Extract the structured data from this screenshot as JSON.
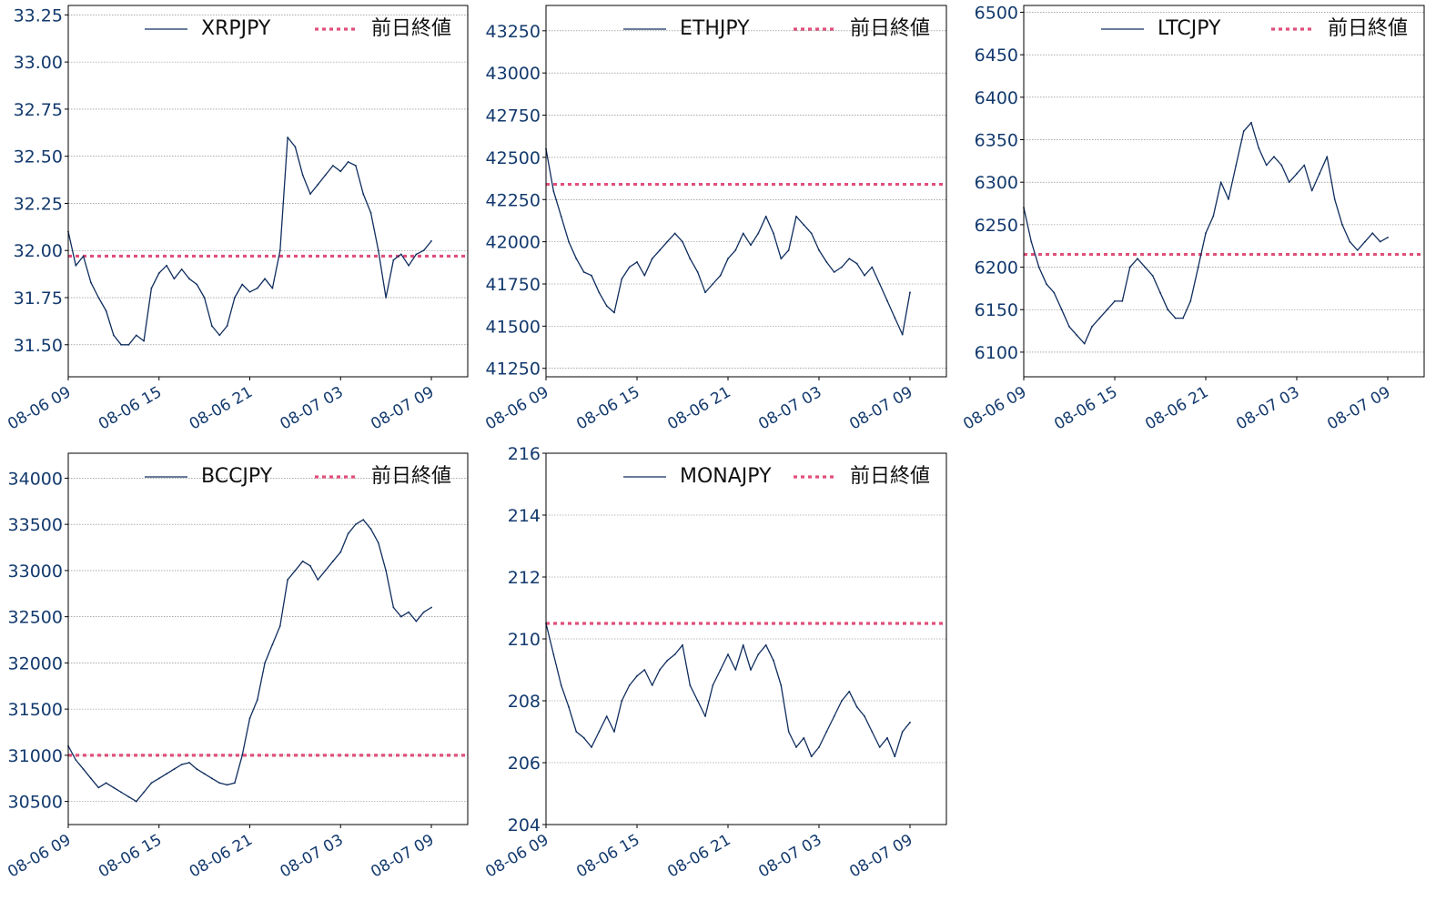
{
  "colors": {
    "series": "#0f2d5e",
    "reference": "#e0507a",
    "ticks": "#133a6e",
    "legend_text": "#111111",
    "grid": "#777777"
  },
  "x_tick_labels": [
    "08-06 09",
    "08-06 15",
    "08-06 21",
    "08-07 03",
    "08-07 09"
  ],
  "chart_data": [
    {
      "type": "line",
      "series": [
        {
          "name": "XRPJPY",
          "x": [
            9.0,
            9.5,
            10.0,
            10.5,
            11.0,
            11.5,
            12.0,
            12.5,
            13.0,
            13.5,
            14.0,
            14.5,
            15.0,
            15.5,
            16.0,
            16.5,
            17.0,
            17.5,
            18.0,
            18.5,
            19.0,
            19.5,
            20.0,
            20.5,
            21.0,
            21.5,
            22.0,
            22.5,
            23.0,
            23.5,
            24.0,
            24.5,
            25.0,
            25.5,
            26.0,
            26.5,
            27.0,
            27.5,
            28.0,
            28.5,
            29.0,
            29.5,
            30.0,
            30.5,
            31.0,
            31.5,
            32.0,
            32.5,
            33.0
          ],
          "values": [
            32.1,
            31.92,
            31.97,
            31.83,
            31.75,
            31.68,
            31.55,
            31.5,
            31.5,
            31.55,
            31.52,
            31.8,
            31.88,
            31.92,
            31.85,
            31.9,
            31.85,
            31.82,
            31.75,
            31.6,
            31.55,
            31.6,
            31.75,
            31.82,
            31.78,
            31.8,
            31.85,
            31.8,
            32.0,
            32.6,
            32.55,
            32.4,
            32.3,
            32.35,
            32.4,
            32.45,
            32.42,
            32.47,
            32.45,
            32.3,
            32.2,
            32.0,
            31.75,
            31.95,
            31.98,
            31.92,
            31.98,
            32.0,
            32.05
          ]
        },
        {
          "name": "前日終値",
          "reference": 31.97
        }
      ],
      "xlim": [
        9.0,
        33.0
      ],
      "ylim": [
        31.33,
        33.3
      ],
      "y_ticks": [
        31.5,
        31.75,
        32.0,
        32.25,
        32.5,
        32.75,
        33.0,
        33.25
      ],
      "y_tick_labels": [
        "31.50",
        "31.75",
        "32.00",
        "32.25",
        "32.50",
        "32.75",
        "33.00",
        "33.25"
      ],
      "grid": true,
      "legend": "top-right",
      "title": "",
      "xlabel": "",
      "ylabel": ""
    },
    {
      "type": "line",
      "series": [
        {
          "name": "ETHJPY",
          "x": [
            9.0,
            9.5,
            10.0,
            10.5,
            11.0,
            11.5,
            12.0,
            12.5,
            13.0,
            13.5,
            14.0,
            14.5,
            15.0,
            15.5,
            16.0,
            16.5,
            17.0,
            17.5,
            18.0,
            18.5,
            19.0,
            19.5,
            20.0,
            20.5,
            21.0,
            21.5,
            22.0,
            22.5,
            23.0,
            23.5,
            24.0,
            24.5,
            25.0,
            25.5,
            26.0,
            26.5,
            27.0,
            27.5,
            28.0,
            28.5,
            29.0,
            29.5,
            30.0,
            30.5,
            31.0,
            31.5,
            32.0,
            32.5,
            33.0
          ],
          "values": [
            42550,
            42300,
            42150,
            42000,
            41900,
            41820,
            41800,
            41700,
            41620,
            41580,
            41780,
            41850,
            41880,
            41800,
            41900,
            41950,
            42000,
            42050,
            42000,
            41900,
            41820,
            41700,
            41750,
            41800,
            41900,
            41950,
            42050,
            41980,
            42050,
            42150,
            42050,
            41900,
            41950,
            42150,
            42100,
            42050,
            41950,
            41880,
            41820,
            41850,
            41900,
            41870,
            41800,
            41850,
            41750,
            41650,
            41550,
            41450,
            41700
          ]
        },
        {
          "name": "前日終値",
          "reference": 42340
        }
      ],
      "xlim": [
        9.0,
        33.0
      ],
      "ylim": [
        41200,
        43400
      ],
      "y_ticks": [
        41250,
        41500,
        41750,
        42000,
        42250,
        42500,
        42750,
        43000,
        43250
      ],
      "y_tick_labels": [
        "41250",
        "41500",
        "41750",
        "42000",
        "42250",
        "42500",
        "42750",
        "43000",
        "43250"
      ],
      "grid": true,
      "legend": "top-right",
      "title": "",
      "xlabel": "",
      "ylabel": ""
    },
    {
      "type": "line",
      "series": [
        {
          "name": "LTCJPY",
          "x": [
            9.0,
            9.5,
            10.0,
            10.5,
            11.0,
            11.5,
            12.0,
            12.5,
            13.0,
            13.5,
            14.0,
            14.5,
            15.0,
            15.5,
            16.0,
            16.5,
            17.0,
            17.5,
            18.0,
            18.5,
            19.0,
            19.5,
            20.0,
            20.5,
            21.0,
            21.5,
            22.0,
            22.5,
            23.0,
            23.5,
            24.0,
            24.5,
            25.0,
            25.5,
            26.0,
            26.5,
            27.0,
            27.5,
            28.0,
            28.5,
            29.0,
            29.5,
            30.0,
            30.5,
            31.0,
            31.5,
            32.0,
            32.5,
            33.0
          ],
          "values": [
            6270,
            6230,
            6200,
            6180,
            6170,
            6150,
            6130,
            6120,
            6110,
            6130,
            6140,
            6150,
            6160,
            6160,
            6200,
            6210,
            6200,
            6190,
            6170,
            6150,
            6140,
            6140,
            6160,
            6200,
            6240,
            6260,
            6300,
            6280,
            6320,
            6360,
            6370,
            6340,
            6320,
            6330,
            6320,
            6300,
            6310,
            6320,
            6290,
            6310,
            6330,
            6280,
            6250,
            6230,
            6220,
            6230,
            6240,
            6230,
            6235
          ]
        },
        {
          "name": "前日終値",
          "reference": 6215
        }
      ],
      "xlim": [
        9.0,
        33.0
      ],
      "ylim": [
        6071,
        6508
      ],
      "y_ticks": [
        6100,
        6150,
        6200,
        6250,
        6300,
        6350,
        6400,
        6450,
        6500
      ],
      "y_tick_labels": [
        "6100",
        "6150",
        "6200",
        "6250",
        "6300",
        "6350",
        "6400",
        "6450",
        "6500"
      ],
      "grid": true,
      "legend": "top-right",
      "title": "",
      "xlabel": "",
      "ylabel": ""
    },
    {
      "type": "line",
      "series": [
        {
          "name": "BCCJPY",
          "x": [
            9.0,
            9.5,
            10.0,
            10.5,
            11.0,
            11.5,
            12.0,
            12.5,
            13.0,
            13.5,
            14.0,
            14.5,
            15.0,
            15.5,
            16.0,
            16.5,
            17.0,
            17.5,
            18.0,
            18.5,
            19.0,
            19.5,
            20.0,
            20.5,
            21.0,
            21.5,
            22.0,
            22.5,
            23.0,
            23.5,
            24.0,
            24.5,
            25.0,
            25.5,
            26.0,
            26.5,
            27.0,
            27.5,
            28.0,
            28.5,
            29.0,
            29.5,
            30.0,
            30.5,
            31.0,
            31.5,
            32.0,
            32.5,
            33.0
          ],
          "values": [
            31100,
            30950,
            30850,
            30750,
            30650,
            30700,
            30650,
            30600,
            30550,
            30500,
            30600,
            30700,
            30750,
            30800,
            30850,
            30900,
            30920,
            30850,
            30800,
            30750,
            30700,
            30680,
            30700,
            31000,
            31400,
            31600,
            32000,
            32200,
            32400,
            32900,
            33000,
            33100,
            33050,
            32900,
            33000,
            33100,
            33200,
            33400,
            33500,
            33550,
            33450,
            33300,
            33000,
            32600,
            32500,
            32550,
            32450,
            32550,
            32600
          ]
        },
        {
          "name": "前日終値",
          "reference": 31000
        }
      ],
      "xlim": [
        9.0,
        33.0
      ],
      "ylim": [
        30250,
        34270
      ],
      "y_ticks": [
        30500,
        31000,
        31500,
        32000,
        32500,
        33000,
        33500,
        34000
      ],
      "y_tick_labels": [
        "30500",
        "31000",
        "31500",
        "32000",
        "32500",
        "33000",
        "33500",
        "34000"
      ],
      "grid": true,
      "legend": "top-right",
      "title": "",
      "xlabel": "",
      "ylabel": ""
    },
    {
      "type": "line",
      "series": [
        {
          "name": "MONAJPY",
          "x": [
            9.0,
            9.5,
            10.0,
            10.5,
            11.0,
            11.5,
            12.0,
            12.5,
            13.0,
            13.5,
            14.0,
            14.5,
            15.0,
            15.5,
            16.0,
            16.5,
            17.0,
            17.5,
            18.0,
            18.5,
            19.0,
            19.5,
            20.0,
            20.5,
            21.0,
            21.5,
            22.0,
            22.5,
            23.0,
            23.5,
            24.0,
            24.5,
            25.0,
            25.5,
            26.0,
            26.5,
            27.0,
            27.5,
            28.0,
            28.5,
            29.0,
            29.5,
            30.0,
            30.5,
            31.0,
            31.5,
            32.0,
            32.5,
            33.0
          ],
          "values": [
            210.5,
            209.5,
            208.5,
            207.8,
            207.0,
            206.8,
            206.5,
            207.0,
            207.5,
            207.0,
            208.0,
            208.5,
            208.8,
            209.0,
            208.5,
            209.0,
            209.3,
            209.5,
            209.8,
            208.5,
            208.0,
            207.5,
            208.5,
            209.0,
            209.5,
            209.0,
            209.8,
            209.0,
            209.5,
            209.8,
            209.3,
            208.5,
            207.0,
            206.5,
            206.8,
            206.2,
            206.5,
            207.0,
            207.5,
            208.0,
            208.3,
            207.8,
            207.5,
            207.0,
            206.5,
            206.8,
            206.2,
            207.0,
            207.3
          ]
        },
        {
          "name": "前日終値",
          "reference": 210.5
        }
      ],
      "xlim": [
        9.0,
        33.0
      ],
      "ylim": [
        204.0,
        216.0
      ],
      "y_ticks": [
        204,
        206,
        208,
        210,
        212,
        214,
        216
      ],
      "y_tick_labels": [
        "204",
        "206",
        "208",
        "210",
        "212",
        "214",
        "216"
      ],
      "grid": true,
      "legend": "top-right",
      "title": "",
      "xlabel": "",
      "ylabel": ""
    }
  ]
}
